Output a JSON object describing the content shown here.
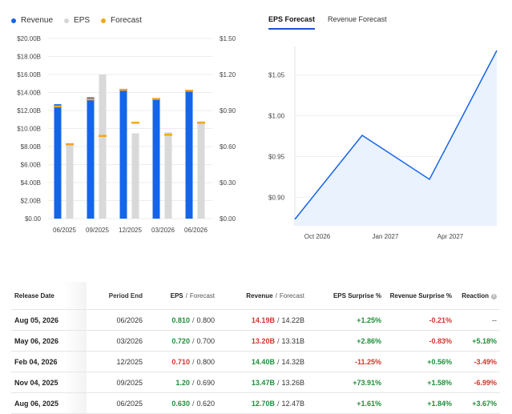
{
  "legend": {
    "items": [
      {
        "label": "Revenue",
        "color": "#1565e8"
      },
      {
        "label": "EPS",
        "color": "#d6d6d6"
      },
      {
        "label": "Forecast",
        "color": "#f5a623"
      }
    ]
  },
  "tabs": [
    {
      "label": "EPS Forecast",
      "active": true
    },
    {
      "label": "Revenue Forecast",
      "active": false
    }
  ],
  "chart_data": [
    {
      "type": "bar",
      "categories": [
        "06/2025",
        "09/2025",
        "12/2025",
        "03/2026",
        "06/2026"
      ],
      "left_axis": {
        "ticks": [
          "$0.00",
          "$2.00B",
          "$4.00B",
          "$6.00B",
          "$8.00B",
          "$10.00B",
          "$12.00B",
          "$14.00B",
          "$16.00B",
          "$18.00B",
          "$20.00B"
        ],
        "range": [
          0,
          20
        ]
      },
      "right_axis": {
        "ticks": [
          "$0.00",
          "$0.30",
          "$0.60",
          "$0.90",
          "$1.20",
          "$1.50"
        ],
        "range": [
          0,
          1.5
        ]
      },
      "series": [
        {
          "name": "Revenue",
          "values": [
            12.7,
            13.47,
            14.4,
            13.2,
            14.19
          ],
          "axis": "left"
        },
        {
          "name": "Forecast",
          "values": [
            12.47,
            13.26,
            14.32,
            13.31,
            14.22
          ],
          "axis": "left"
        },
        {
          "name": "EPS",
          "values": [
            0.63,
            1.2,
            0.71,
            0.72,
            0.81
          ],
          "axis": "right"
        },
        {
          "name": "Forecast",
          "values": [
            0.62,
            0.69,
            0.8,
            0.7,
            0.8
          ],
          "axis": "right"
        }
      ],
      "grid": true
    },
    {
      "type": "area",
      "x_ticks": [
        "Oct 2026",
        "Jan 2027",
        "Apr 2027"
      ],
      "y_ticks": [
        "$0.90",
        "$0.95",
        "$1.00",
        "$1.05"
      ],
      "ylim": [
        0.865,
        1.085
      ],
      "x": [
        "2026-09",
        "2026-12",
        "2027-03",
        "2027-06"
      ],
      "values": [
        0.873,
        0.976,
        0.922,
        1.08
      ],
      "grid": true
    }
  ],
  "table": {
    "headers": {
      "release_date": "Release Date",
      "period_end": "Period End",
      "eps": "EPS",
      "eps_forecast": "Forecast",
      "revenue": "Revenue",
      "revenue_forecast": "Forecast",
      "eps_surprise": "EPS Surprise %",
      "revenue_surprise": "Revenue Surprise %",
      "reaction": "Reaction"
    },
    "separator": "/",
    "rows": [
      {
        "release_date": "Aug 05, 2026",
        "period_end": "06/2026",
        "eps": "0.810",
        "eps_color": "green",
        "eps_forecast": "0.800",
        "revenue": "14.19B",
        "rev_color": "red",
        "revenue_forecast": "14.22B",
        "eps_surprise": "+1.25%",
        "eps_s_color": "green",
        "revenue_surprise": "-0.21%",
        "rev_s_color": "red",
        "reaction": "--",
        "react_color": "neutral"
      },
      {
        "release_date": "May 06, 2026",
        "period_end": "03/2026",
        "eps": "0.720",
        "eps_color": "green",
        "eps_forecast": "0.700",
        "revenue": "13.20B",
        "rev_color": "red",
        "revenue_forecast": "13.31B",
        "eps_surprise": "+2.86%",
        "eps_s_color": "green",
        "revenue_surprise": "-0.83%",
        "rev_s_color": "red",
        "reaction": "+5.18%",
        "react_color": "green"
      },
      {
        "release_date": "Feb 04, 2026",
        "period_end": "12/2025",
        "eps": "0.710",
        "eps_color": "red",
        "eps_forecast": "0.800",
        "revenue": "14.40B",
        "rev_color": "green",
        "revenue_forecast": "14.32B",
        "eps_surprise": "-11.25%",
        "eps_s_color": "red",
        "revenue_surprise": "+0.56%",
        "rev_s_color": "green",
        "reaction": "-3.49%",
        "react_color": "red"
      },
      {
        "release_date": "Nov 04, 2025",
        "period_end": "09/2025",
        "eps": "1.20",
        "eps_color": "green",
        "eps_forecast": "0.690",
        "revenue": "13.47B",
        "rev_color": "green",
        "revenue_forecast": "13.26B",
        "eps_surprise": "+73.91%",
        "eps_s_color": "green",
        "revenue_surprise": "+1.58%",
        "rev_s_color": "green",
        "reaction": "-6.99%",
        "react_color": "red"
      },
      {
        "release_date": "Aug 06, 2025",
        "period_end": "06/2025",
        "eps": "0.630",
        "eps_color": "green",
        "eps_forecast": "0.620",
        "revenue": "12.70B",
        "rev_color": "green",
        "revenue_forecast": "12.47B",
        "eps_surprise": "+1.61%",
        "eps_s_color": "green",
        "revenue_surprise": "+1.84%",
        "rev_s_color": "green",
        "reaction": "+3.67%",
        "react_color": "green"
      }
    ]
  }
}
